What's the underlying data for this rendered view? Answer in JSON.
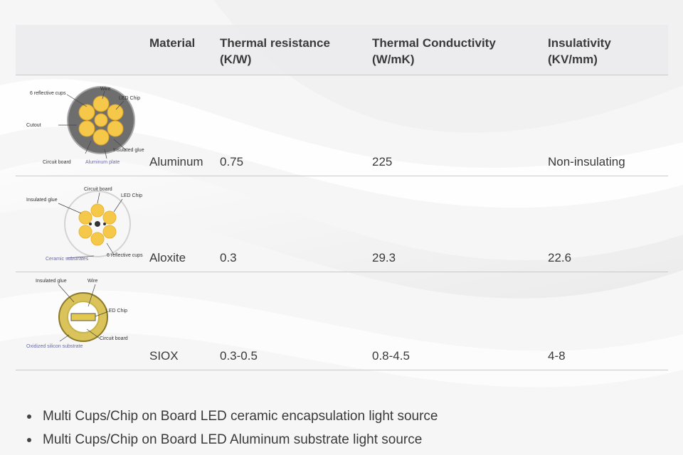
{
  "table": {
    "headers": {
      "material": "Material",
      "thermal_resistance": [
        "Thermal resistance",
        "(K/W)"
      ],
      "thermal_conductivity": [
        "Thermal Conductivity",
        "(W/mK)"
      ],
      "insulativity": [
        "Insulativity",
        "(KV/mm)"
      ]
    },
    "rows": [
      {
        "material": "Aluminum",
        "thermal_resistance": "0.75",
        "thermal_conductivity": "225",
        "insulativity": "Non-insulating",
        "diagram_labels": {
          "reflective_cups": "6 reflective cups",
          "wire": "Wire",
          "led_chip": "LED Chip",
          "cutout": "Cutout",
          "insulated_glue": "Insulated glue",
          "circuit_board": "Circuit board",
          "aluminum_plate": "Aluminum plate"
        }
      },
      {
        "material": "Aloxite",
        "thermal_resistance": "0.3",
        "thermal_conductivity": "29.3",
        "insulativity": "22.6",
        "diagram_labels": {
          "circuit_board": "Circuit board",
          "insulated_glue": "Insulated glue",
          "led_chip": "LED Chip",
          "ceramic_substrates": "Ceramic substrates",
          "reflective_cups": "6 reflective cups"
        }
      },
      {
        "material": "SIOX",
        "thermal_resistance": "0.3-0.5",
        "thermal_conductivity": "0.8-4.5",
        "insulativity": "4-8",
        "diagram_labels": {
          "insulated_glue": "Insulated glue",
          "wire": "Wire",
          "led_chip": "LED Chip",
          "circuit_board": "Circuit board",
          "oxidized_silicon_substrate": "Oxidized silicon substrate"
        }
      }
    ]
  },
  "bullets": [
    "Multi Cups/Chip on Board LED ceramic encapsulation light source",
    "Multi Cups/Chip on Board LED Aluminum substrate light source"
  ],
  "colors": {
    "text": "#3a3a3a",
    "rule": "#c9c9c9",
    "header_bg": "#ececee",
    "led_yellow": "#f5c84a"
  }
}
